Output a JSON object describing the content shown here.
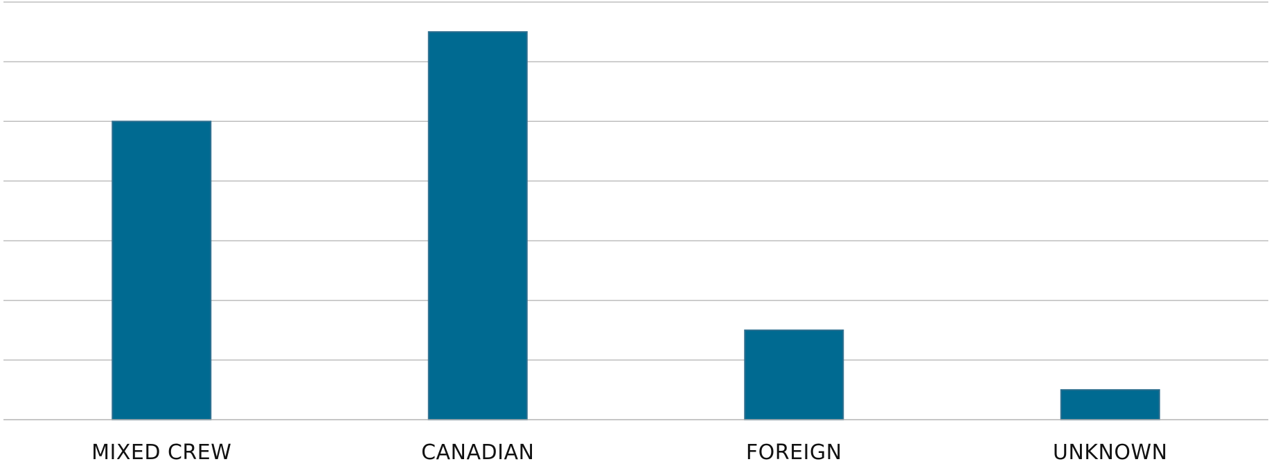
{
  "chart_data": {
    "type": "bar",
    "categories": [
      "MIXED CREW",
      "CANADIAN",
      "FOREIGN",
      "UNKNOWN"
    ],
    "values": [
      5.0,
      6.5,
      1.5,
      0.5
    ],
    "ylim": [
      0,
      7
    ],
    "grid": true,
    "bar_color": "#006a91",
    "grid_color": "#bdbdbd"
  }
}
